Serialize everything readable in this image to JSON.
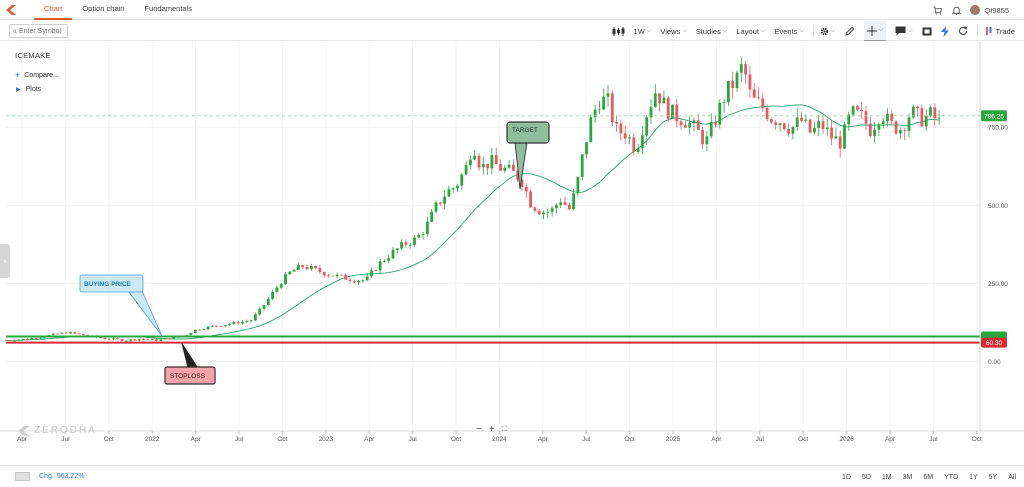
{
  "topbar": {
    "tabs": [
      {
        "label": "Chart",
        "active": true
      },
      {
        "label": "Option chain",
        "active": false
      },
      {
        "label": "Fundamentals",
        "active": false
      }
    ],
    "user_id": "QI9855",
    "logo_color": "#e2572c"
  },
  "toolbar": {
    "search_placeholder": "Enter Symbol",
    "interval": "1W",
    "views": "Views",
    "studies": "Studies",
    "layout": "Layout",
    "events": "Events",
    "trade": "Trade"
  },
  "chart": {
    "symbol": "ICEMAKE",
    "compare_label": "Compare...",
    "plots_label": "Plots",
    "watermark": "ZERODHA",
    "zoom_out": "−",
    "zoom_in": "+",
    "zoom_reset": "⛶"
  },
  "chart_data": {
    "type": "candlestick",
    "interval": "1W",
    "title": "ICEMAKE",
    "ylim": [
      -220,
      970
    ],
    "y_ticks": [
      {
        "value": 0,
        "label": "0.00"
      },
      {
        "value": 250,
        "label": "250.00"
      },
      {
        "value": 500,
        "label": "500.00"
      },
      {
        "value": 750,
        "label": "750.00"
      }
    ],
    "x_ticks": [
      "Apr",
      "Jul",
      "Oct",
      "2022",
      "Apr",
      "Jul",
      "Oct",
      "2023",
      "Apr",
      "Jul",
      "Oct",
      "2024",
      "Apr",
      "Jul",
      "Oct",
      "2025",
      "Apr",
      "Jul",
      "Oct",
      "2026",
      "Apr",
      "Jul",
      "Oct"
    ],
    "year_ticks": [
      "2022",
      "2023",
      "2024",
      "2025",
      "2026"
    ],
    "last_price": {
      "value": 786.25,
      "label": "786.25",
      "color": "#2aa63e"
    },
    "moving_average_color": "#2aa66f",
    "up_color": "#2aa63e",
    "down_color": "#e45b62",
    "price_path": [
      [
        0,
        68
      ],
      [
        20,
        72
      ],
      [
        38,
        80
      ],
      [
        50,
        88
      ],
      [
        62,
        93
      ],
      [
        75,
        86
      ],
      [
        90,
        78
      ],
      [
        105,
        72
      ],
      [
        120,
        68
      ],
      [
        135,
        72
      ],
      [
        150,
        68
      ],
      [
        165,
        75
      ],
      [
        178,
        82
      ],
      [
        190,
        102
      ],
      [
        205,
        112
      ],
      [
        220,
        118
      ],
      [
        232,
        125
      ],
      [
        245,
        132
      ],
      [
        255,
        168
      ],
      [
        265,
        212
      ],
      [
        275,
        255
      ],
      [
        285,
        288
      ],
      [
        297,
        305
      ],
      [
        310,
        292
      ],
      [
        322,
        280
      ],
      [
        335,
        270
      ],
      [
        348,
        262
      ],
      [
        360,
        260
      ],
      [
        372,
        310
      ],
      [
        385,
        345
      ],
      [
        398,
        375
      ],
      [
        410,
        392
      ],
      [
        420,
        430
      ],
      [
        430,
        495
      ],
      [
        440,
        540
      ],
      [
        450,
        562
      ],
      [
        460,
        620
      ],
      [
        467,
        700
      ],
      [
        475,
        620
      ],
      [
        485,
        640
      ],
      [
        495,
        618
      ],
      [
        505,
        608
      ],
      [
        515,
        585
      ],
      [
        525,
        505
      ],
      [
        535,
        480
      ],
      [
        545,
        480
      ],
      [
        555,
        520
      ],
      [
        563,
        485
      ],
      [
        570,
        550
      ],
      [
        578,
        680
      ],
      [
        586,
        785
      ],
      [
        594,
        840
      ],
      [
        602,
        830
      ],
      [
        610,
        740
      ],
      [
        620,
        730
      ],
      [
        630,
        680
      ],
      [
        640,
        790
      ],
      [
        650,
        870
      ],
      [
        660,
        810
      ],
      [
        670,
        785
      ],
      [
        680,
        770
      ],
      [
        690,
        742
      ],
      [
        700,
        700
      ],
      [
        710,
        780
      ],
      [
        720,
        860
      ],
      [
        730,
        900
      ],
      [
        737,
        950
      ],
      [
        745,
        840
      ],
      [
        755,
        820
      ],
      [
        765,
        780
      ],
      [
        775,
        770
      ],
      [
        785,
        745
      ],
      [
        795,
        772
      ],
      [
        805,
        730
      ],
      [
        815,
        760
      ],
      [
        825,
        720
      ],
      [
        835,
        700
      ],
      [
        845,
        795
      ],
      [
        855,
        785
      ],
      [
        865,
        740
      ],
      [
        875,
        800
      ],
      [
        885,
        755
      ],
      [
        895,
        745
      ],
      [
        905,
        800
      ],
      [
        915,
        775
      ],
      [
        925,
        790
      ],
      [
        935,
        760
      ],
      [
        943,
        770
      ]
    ],
    "annotations": [
      {
        "label": "BUYING PRICE",
        "fill": "#cde9f7",
        "border": "#4aa3d8",
        "text_color": "#1a7fb5"
      },
      {
        "label": "TARGET",
        "fill": "#8fbf9f",
        "border": "#333333",
        "text_color": "#1f2f24"
      },
      {
        "label": "STOPLOSS",
        "fill": "#f4a3a8",
        "border": "#333333",
        "text_color": "#4a1a1a"
      }
    ],
    "level_lines": [
      {
        "label": "",
        "value": 80,
        "color": "#2aa63e"
      },
      {
        "label": "60.30",
        "value": 60.3,
        "color": "#d92b34"
      }
    ]
  },
  "bottombar": {
    "change_label": "Chg.",
    "change_value": "963.22%",
    "ranges": [
      "1D",
      "5D",
      "1M",
      "3M",
      "6M",
      "YTD",
      "1Y",
      "5Y",
      "All"
    ]
  }
}
